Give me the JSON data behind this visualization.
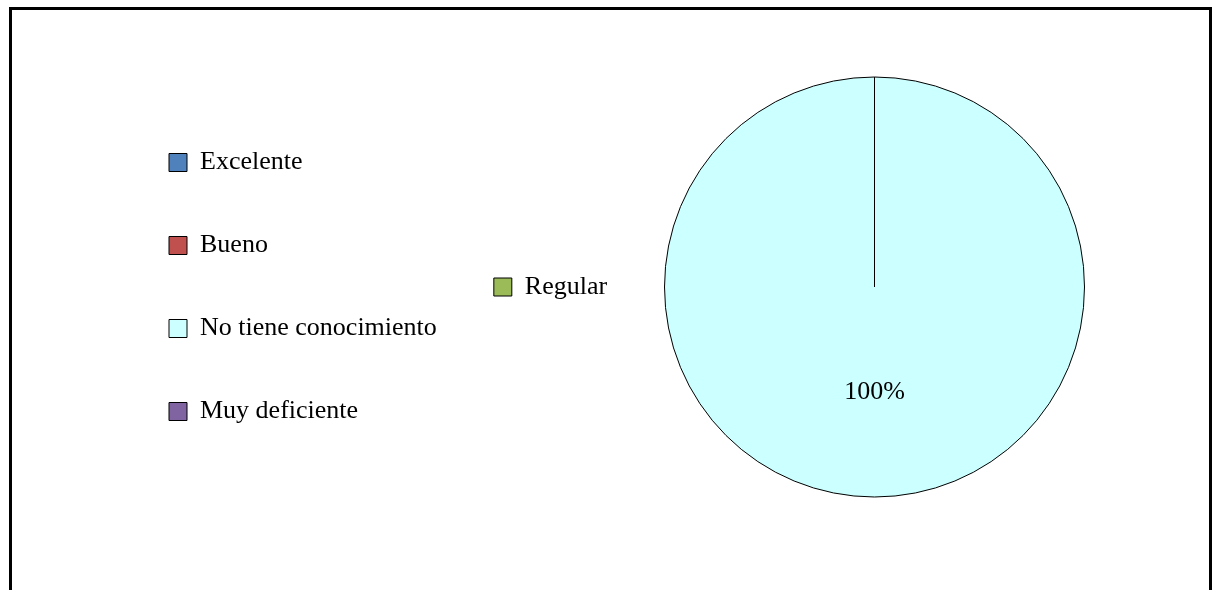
{
  "chart_data": {
    "type": "pie",
    "categories": [
      "Excelente",
      "Bueno",
      "No tiene conocimiento",
      "Muy deficiente",
      "Regular"
    ],
    "values": [
      0,
      0,
      100,
      0,
      0
    ],
    "colors": [
      "#4f81bd",
      "#c0504d",
      "#ccffff",
      "#8064a2",
      "#9bbb59"
    ],
    "value_labels": [
      null,
      null,
      "100%",
      null,
      null
    ],
    "legend": "left"
  }
}
